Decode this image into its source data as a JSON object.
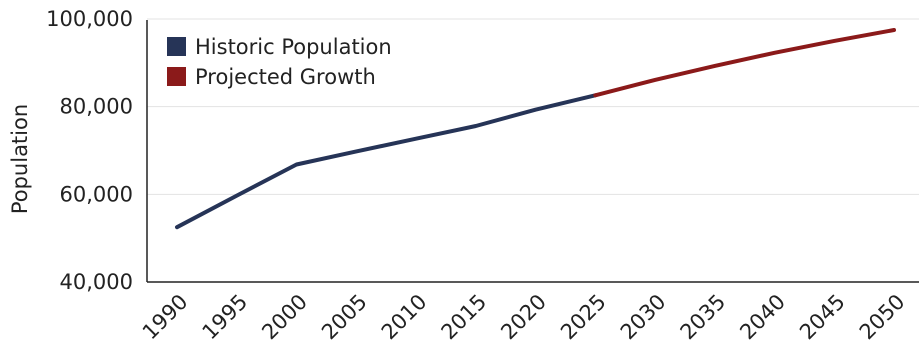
{
  "chart_data": {
    "type": "line",
    "title": "",
    "xlabel": "",
    "ylabel": "Population",
    "x": [
      1990,
      1995,
      2000,
      2005,
      2010,
      2015,
      2020,
      2025,
      2030,
      2035,
      2040,
      2045,
      2050
    ],
    "xticks": [
      "1990",
      "1995",
      "2000",
      "2005",
      "2010",
      "2015",
      "2020",
      "2025",
      "2030",
      "2035",
      "2040",
      "2045",
      "2050"
    ],
    "yticks": [
      "40,000",
      "60,000",
      "80,000",
      "100,000"
    ],
    "ylim": [
      40000,
      100000
    ],
    "grid": "horizontal",
    "legend_position": "top-left",
    "series": [
      {
        "name": "Historic Population",
        "color": "#263457",
        "x": [
          1990,
          1995,
          2000,
          2005,
          2010,
          2015,
          2020,
          2025
        ],
        "values": [
          52500,
          59700,
          66800,
          69800,
          72700,
          75600,
          79300,
          82600
        ]
      },
      {
        "name": "Projected Growth",
        "color": "#8b1a1a",
        "x": [
          2025,
          2030,
          2035,
          2040,
          2045,
          2050
        ],
        "values": [
          82600,
          86100,
          89300,
          92300,
          95000,
          97500
        ]
      }
    ]
  }
}
